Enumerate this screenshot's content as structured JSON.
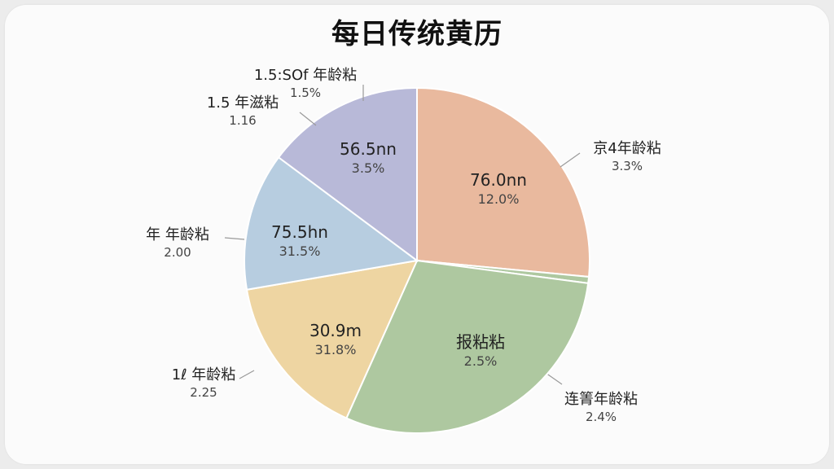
{
  "chart_data": {
    "type": "pie",
    "title": "每日传统黄历",
    "slices": [
      {
        "inner_value": "76.0nn",
        "inner_pct": "12.0%",
        "label": "京4年龄粘",
        "label_sub": "3.3%",
        "share": 0.265,
        "color": "#e9b99e"
      },
      {
        "inner_value": "",
        "inner_pct": "",
        "label": "连箐年龄粘",
        "label_sub": "2.4%",
        "share": 0.006,
        "color": "#aec8a0"
      },
      {
        "inner_value": "报粘粘",
        "inner_pct": "2.5%",
        "label": "",
        "label_sub": "",
        "share": 0.296,
        "color": "#aec8a0"
      },
      {
        "inner_value": "30.9m",
        "inner_pct": "31.8%",
        "label": "1ℓ 年龄粘",
        "label_sub": "2.25",
        "share": 0.156,
        "color": "#eed5a2"
      },
      {
        "inner_value": "75.5hn",
        "inner_pct": "31.5%",
        "label": "年 年龄粘",
        "label_sub": "2.00",
        "share": 0.129,
        "color": "#b7cde0"
      },
      {
        "inner_value": "56.5nn",
        "inner_pct": "3.5%",
        "label": "1.5 年滋粘",
        "label_sub": "1.16",
        "share": 0.148,
        "color": "#b8b9d8"
      },
      {
        "inner_value": "",
        "inner_pct": "",
        "label": "1.5:SOf 年龄粘",
        "label_sub": "1.5%",
        "share": 0.0,
        "color": "#b8b9d8"
      }
    ]
  }
}
